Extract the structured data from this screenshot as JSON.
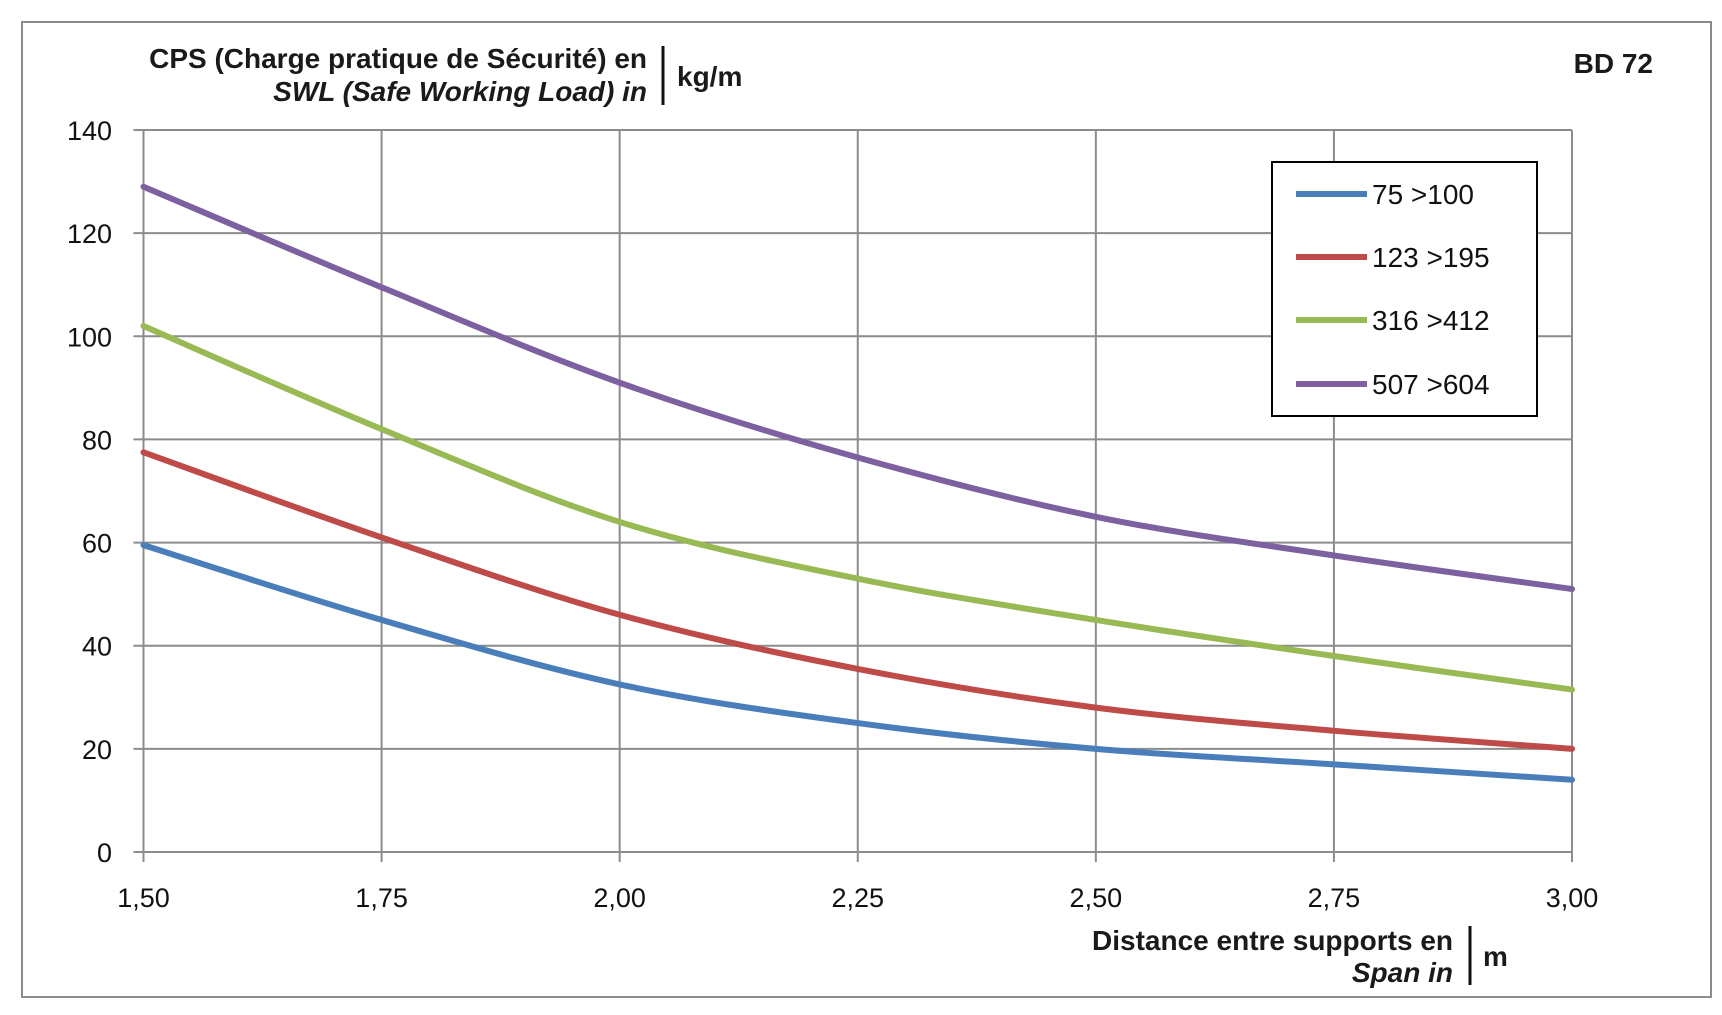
{
  "chart_data": {
    "type": "line",
    "title_line1": "CPS (Charge pratique de Sécurité) en",
    "title_line2": "SWL (Safe Working Load) in",
    "yunit": "kg/m",
    "corner_label": "BD 72",
    "xlabel_line1": "Distance entre supports en",
    "xlabel_line2": "Span in",
    "xunit": "m",
    "x": [
      1.5,
      1.75,
      2.0,
      2.25,
      2.5,
      2.75,
      3.0
    ],
    "x_tick_labels": [
      "1,50",
      "1,75",
      "2,00",
      "2,25",
      "2,50",
      "2,75",
      "3,00"
    ],
    "y_ticks": [
      0,
      20,
      40,
      60,
      80,
      100,
      120,
      140
    ],
    "xlim": [
      1.5,
      3.0
    ],
    "ylim": [
      0,
      140
    ],
    "grid": true,
    "legend_position": "top-right",
    "series": [
      {
        "name": "75 >100",
        "color": "#4a7ebb",
        "values": [
          59.5,
          45,
          32.5,
          25,
          20,
          17,
          14
        ]
      },
      {
        "name": "123 >195",
        "color": "#be4b48",
        "values": [
          77.5,
          61,
          46,
          35.5,
          28,
          23.5,
          20
        ]
      },
      {
        "name": "316 >412",
        "color": "#98b954",
        "values": [
          102,
          82,
          64,
          53,
          45,
          38,
          31.5
        ]
      },
      {
        "name": "507 >604",
        "color": "#7d60a0",
        "values": [
          129,
          109.5,
          91,
          76.5,
          65,
          57.5,
          51
        ]
      }
    ]
  }
}
